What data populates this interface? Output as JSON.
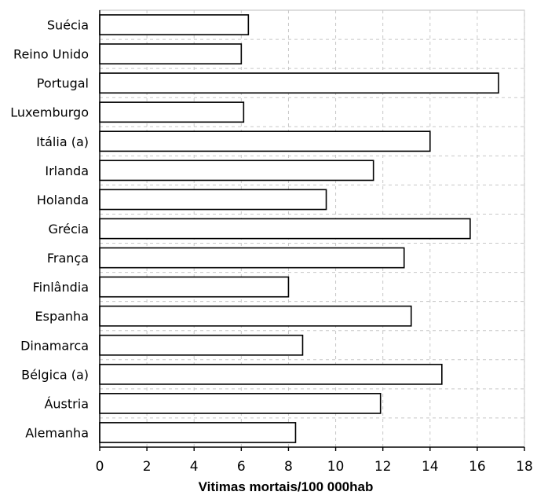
{
  "chart_data": {
    "type": "bar",
    "orientation": "horizontal",
    "categories": [
      "Suécia",
      "Reino Unido",
      "Portugal",
      "Luxemburgo",
      "Itália (a)",
      "Irlanda",
      "Holanda",
      "Grécia",
      "França",
      "Finlândia",
      "Espanha",
      "Dinamarca",
      "Bélgica (a)",
      "Áustria",
      "Alemanha"
    ],
    "values": [
      6.3,
      6.0,
      16.9,
      6.1,
      14.0,
      11.6,
      9.6,
      15.7,
      12.9,
      8.0,
      13.2,
      8.6,
      14.5,
      11.9,
      8.3
    ],
    "xlabel": "Vitimas mortais/100 000hab",
    "xlim": [
      0,
      18
    ],
    "xticks": [
      "0",
      "2",
      "4",
      "6",
      "8",
      "10",
      "12",
      "14",
      "16",
      "18"
    ],
    "grid": true,
    "colors": {
      "bar_fill": "#ffffff",
      "bar_stroke": "#000000",
      "grid": "#c8c8c8"
    }
  }
}
